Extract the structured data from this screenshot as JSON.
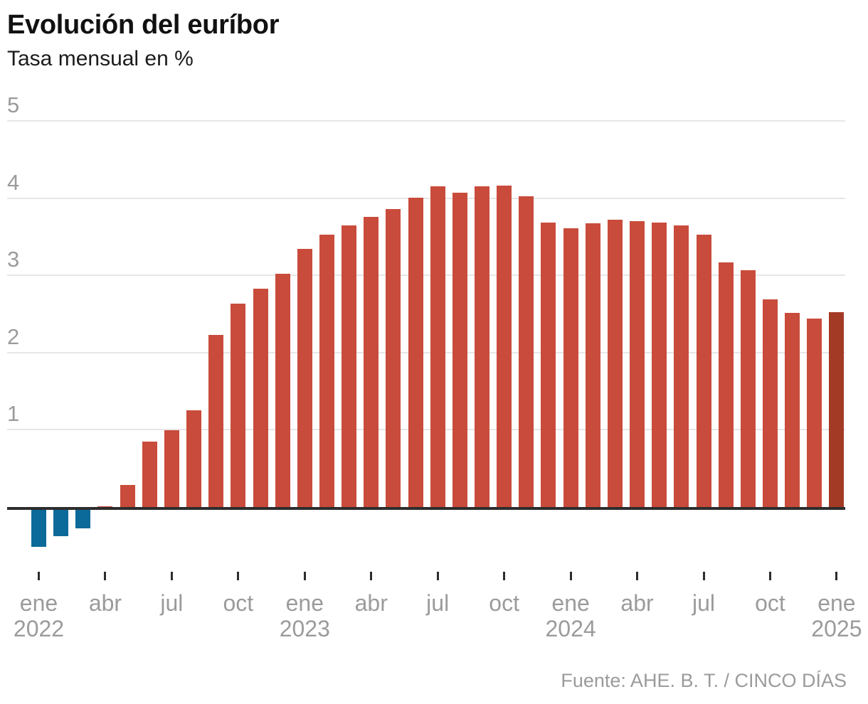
{
  "header": {
    "title": "Evolución del euríbor",
    "subtitle": "Tasa mensual en %"
  },
  "footer": {
    "source": "Fuente: AHE. B. T. / CINCO DÍAS"
  },
  "chart_data": {
    "type": "bar",
    "title": "Evolución del euríbor",
    "subtitle": "Tasa mensual en %",
    "unit": "%",
    "categories": [
      "ene 2022",
      "feb 2022",
      "mar 2022",
      "abr 2022",
      "may 2022",
      "jun 2022",
      "jul 2022",
      "ago 2022",
      "sep 2022",
      "oct 2022",
      "nov 2022",
      "dic 2022",
      "ene 2023",
      "feb 2023",
      "mar 2023",
      "abr 2023",
      "may 2023",
      "jun 2023",
      "jul 2023",
      "ago 2023",
      "sep 2023",
      "oct 2023",
      "nov 2023",
      "dic 2023",
      "ene 2024",
      "feb 2024",
      "mar 2024",
      "abr 2024",
      "may 2024",
      "jun 2024",
      "jul 2024",
      "ago 2024",
      "sep 2024",
      "oct 2024",
      "nov 2024",
      "dic 2024",
      "ene 2025"
    ],
    "values": [
      -0.48,
      -0.34,
      -0.24,
      0.01,
      0.29,
      0.85,
      0.99,
      1.25,
      2.23,
      2.63,
      2.83,
      3.02,
      3.34,
      3.53,
      3.65,
      3.76,
      3.86,
      4.01,
      4.15,
      4.07,
      4.15,
      4.16,
      4.02,
      3.68,
      3.61,
      3.67,
      3.72,
      3.7,
      3.68,
      3.65,
      3.53,
      3.17,
      3.07,
      2.69,
      2.51,
      2.44,
      2.52
    ],
    "ylim": [
      -0.6,
      5
    ],
    "y_ticks": [
      1,
      2,
      3,
      4,
      5
    ],
    "x_ticks": [
      {
        "index": 0,
        "month": "ene",
        "year": "2022"
      },
      {
        "index": 3,
        "month": "abr"
      },
      {
        "index": 6,
        "month": "jul"
      },
      {
        "index": 9,
        "month": "oct"
      },
      {
        "index": 12,
        "month": "ene",
        "year": "2023"
      },
      {
        "index": 15,
        "month": "abr"
      },
      {
        "index": 18,
        "month": "jul"
      },
      {
        "index": 21,
        "month": "oct"
      },
      {
        "index": 24,
        "month": "ene",
        "year": "2024"
      },
      {
        "index": 27,
        "month": "abr"
      },
      {
        "index": 30,
        "month": "jul"
      },
      {
        "index": 33,
        "month": "oct"
      },
      {
        "index": 36,
        "month": "ene",
        "year": "2025"
      }
    ],
    "grid": "horizontal",
    "legend": "none",
    "highlight_index": 36,
    "colors": {
      "positive": "#c94b3b",
      "negative": "#0b6a99",
      "highlight": "#a33a25",
      "axis": "#2d2d2d",
      "gridline": "#e6e6e6",
      "label": "#9b9b9b"
    }
  }
}
